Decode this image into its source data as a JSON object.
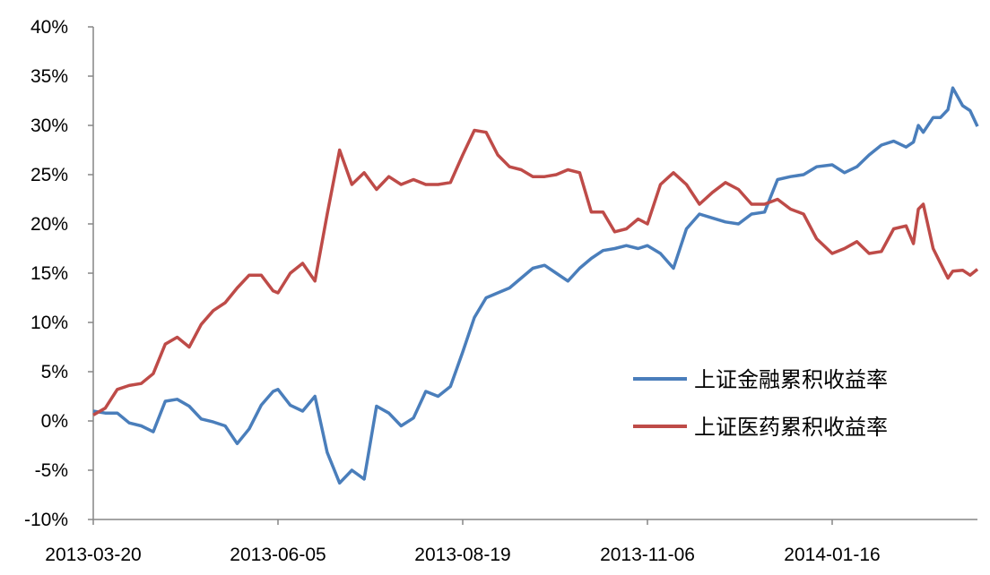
{
  "chart_data": {
    "type": "line",
    "title": "",
    "xlabel": "",
    "ylabel": "",
    "ylim": [
      -10,
      40
    ],
    "yticks": [
      -10,
      -5,
      0,
      5,
      10,
      15,
      20,
      25,
      30,
      35,
      40
    ],
    "ytick_labels": [
      "-10%",
      "-5%",
      "0%",
      "5%",
      "10%",
      "15%",
      "20%",
      "25%",
      "30%",
      "35%",
      "40%"
    ],
    "xticks": [
      "2013-03-20",
      "2013-06-05",
      "2013-08-19",
      "2013-11-06",
      "2014-01-16"
    ],
    "xlim": [
      "2013-03-20",
      "2014-03-16"
    ],
    "grid": false,
    "legend_position": "right",
    "x": [
      "2013-03-20",
      "2013-03-25",
      "2013-03-30",
      "2013-04-04",
      "2013-04-09",
      "2013-04-14",
      "2013-04-19",
      "2013-04-24",
      "2013-04-29",
      "2013-05-04",
      "2013-05-09",
      "2013-05-14",
      "2013-05-19",
      "2013-05-24",
      "2013-05-29",
      "2013-06-03",
      "2013-06-05",
      "2013-06-10",
      "2013-06-15",
      "2013-06-20",
      "2013-06-25",
      "2013-06-30",
      "2013-07-05",
      "2013-07-10",
      "2013-07-15",
      "2013-07-20",
      "2013-07-25",
      "2013-07-30",
      "2013-08-04",
      "2013-08-09",
      "2013-08-14",
      "2013-08-19",
      "2013-08-24",
      "2013-08-29",
      "2013-09-03",
      "2013-09-08",
      "2013-09-13",
      "2013-09-18",
      "2013-09-23",
      "2013-09-28",
      "2013-10-03",
      "2013-10-08",
      "2013-10-13",
      "2013-10-18",
      "2013-10-23",
      "2013-10-28",
      "2013-11-02",
      "2013-11-06",
      "2013-11-11",
      "2013-11-16",
      "2013-11-21",
      "2013-11-26",
      "2013-12-01",
      "2013-12-06",
      "2013-12-11",
      "2013-12-16",
      "2013-12-21",
      "2013-12-26",
      "2013-12-31",
      "2014-01-05",
      "2014-01-10",
      "2014-01-16",
      "2014-01-21",
      "2014-01-26",
      "2014-01-31",
      "2014-02-05",
      "2014-02-10",
      "2014-02-15",
      "2014-02-18",
      "2014-02-20",
      "2014-02-22",
      "2014-02-26",
      "2014-03-01",
      "2014-03-04",
      "2014-03-06",
      "2014-03-10",
      "2014-03-13",
      "2014-03-16"
    ],
    "series": [
      {
        "name": "上证金融累积收益率",
        "color": "#4a7ebb",
        "values": [
          1.0,
          0.8,
          0.8,
          -0.2,
          -0.5,
          -1.1,
          2.0,
          2.2,
          1.5,
          0.2,
          -0.1,
          -0.5,
          -2.3,
          -0.8,
          1.6,
          3.0,
          3.2,
          1.6,
          1.0,
          2.5,
          -3.2,
          -6.3,
          -5.0,
          -5.9,
          1.5,
          0.8,
          -0.5,
          0.3,
          3.0,
          2.5,
          3.5,
          7.0,
          10.5,
          12.5,
          13.0,
          13.5,
          14.5,
          15.5,
          15.8,
          15.0,
          14.2,
          15.5,
          16.5,
          17.3,
          17.5,
          17.8,
          17.5,
          17.8,
          17.0,
          15.5,
          19.5,
          21.0,
          20.6,
          20.2,
          20.0,
          21.0,
          21.2,
          24.5,
          24.8,
          25.0,
          25.8,
          26.0,
          25.2,
          25.8,
          27.0,
          28.0,
          28.4,
          27.8,
          28.3,
          30.0,
          29.3,
          30.8,
          30.8,
          31.6,
          33.8,
          32.0,
          31.5,
          29.9
        ]
      },
      {
        "name": "上证医药累积收益率",
        "color": "#be4b48",
        "values": [
          0.6,
          1.3,
          3.2,
          3.6,
          3.8,
          4.8,
          7.8,
          8.5,
          7.5,
          9.8,
          11.2,
          12.0,
          13.5,
          14.8,
          14.8,
          13.2,
          13.0,
          15.0,
          16.0,
          14.2,
          21.0,
          27.5,
          24.0,
          25.2,
          23.5,
          24.8,
          24.0,
          24.5,
          24.0,
          24.0,
          24.2,
          27.0,
          29.5,
          29.3,
          27.0,
          25.8,
          25.5,
          24.8,
          24.8,
          25.0,
          25.5,
          25.2,
          21.2,
          21.2,
          19.2,
          19.5,
          20.5,
          20.0,
          24.0,
          25.2,
          24.0,
          22.0,
          23.2,
          24.2,
          23.5,
          22.0,
          22.0,
          22.5,
          21.5,
          21.0,
          18.5,
          17.0,
          17.5,
          18.2,
          17.0,
          17.2,
          19.5,
          19.8,
          18.0,
          21.5,
          22.0,
          17.5,
          16.0,
          14.5,
          15.2,
          15.3,
          14.8,
          15.4
        ]
      }
    ]
  }
}
